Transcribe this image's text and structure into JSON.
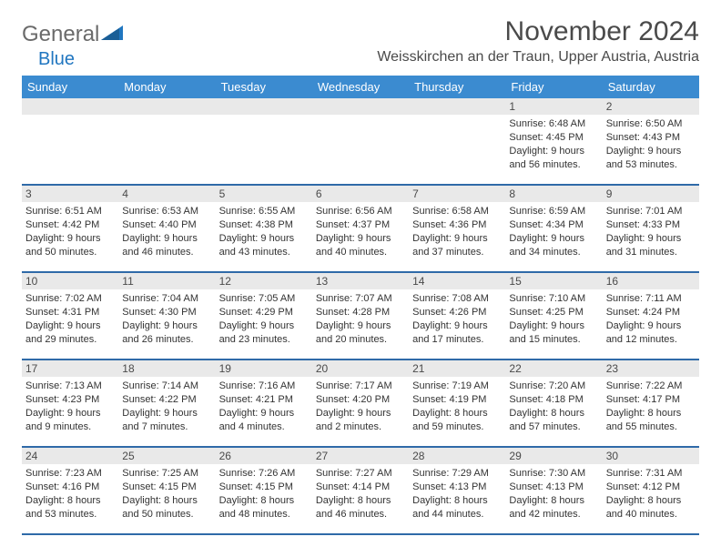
{
  "brand": {
    "part1": "General",
    "part2": "Blue"
  },
  "title": "November 2024",
  "location": "Weisskirchen an der Traun, Upper Austria, Austria",
  "colors": {
    "header_bg": "#3b8bd0",
    "week_border": "#2f6aa8",
    "daynum_bg": "#e9e9e9",
    "text": "#333333",
    "title_text": "#4a4a4a",
    "brand_gray": "#6a6a6a",
    "brand_blue": "#2076c0",
    "page_bg": "#ffffff"
  },
  "daynames": [
    "Sunday",
    "Monday",
    "Tuesday",
    "Wednesday",
    "Thursday",
    "Friday",
    "Saturday"
  ],
  "weeks": [
    {
      "nums": [
        "",
        "",
        "",
        "",
        "",
        "1",
        "2"
      ],
      "cells": [
        null,
        null,
        null,
        null,
        null,
        {
          "sunrise": "Sunrise: 6:48 AM",
          "sunset": "Sunset: 4:45 PM",
          "daylight1": "Daylight: 9 hours",
          "daylight2": "and 56 minutes."
        },
        {
          "sunrise": "Sunrise: 6:50 AM",
          "sunset": "Sunset: 4:43 PM",
          "daylight1": "Daylight: 9 hours",
          "daylight2": "and 53 minutes."
        }
      ]
    },
    {
      "nums": [
        "3",
        "4",
        "5",
        "6",
        "7",
        "8",
        "9"
      ],
      "cells": [
        {
          "sunrise": "Sunrise: 6:51 AM",
          "sunset": "Sunset: 4:42 PM",
          "daylight1": "Daylight: 9 hours",
          "daylight2": "and 50 minutes."
        },
        {
          "sunrise": "Sunrise: 6:53 AM",
          "sunset": "Sunset: 4:40 PM",
          "daylight1": "Daylight: 9 hours",
          "daylight2": "and 46 minutes."
        },
        {
          "sunrise": "Sunrise: 6:55 AM",
          "sunset": "Sunset: 4:38 PM",
          "daylight1": "Daylight: 9 hours",
          "daylight2": "and 43 minutes."
        },
        {
          "sunrise": "Sunrise: 6:56 AM",
          "sunset": "Sunset: 4:37 PM",
          "daylight1": "Daylight: 9 hours",
          "daylight2": "and 40 minutes."
        },
        {
          "sunrise": "Sunrise: 6:58 AM",
          "sunset": "Sunset: 4:36 PM",
          "daylight1": "Daylight: 9 hours",
          "daylight2": "and 37 minutes."
        },
        {
          "sunrise": "Sunrise: 6:59 AM",
          "sunset": "Sunset: 4:34 PM",
          "daylight1": "Daylight: 9 hours",
          "daylight2": "and 34 minutes."
        },
        {
          "sunrise": "Sunrise: 7:01 AM",
          "sunset": "Sunset: 4:33 PM",
          "daylight1": "Daylight: 9 hours",
          "daylight2": "and 31 minutes."
        }
      ]
    },
    {
      "nums": [
        "10",
        "11",
        "12",
        "13",
        "14",
        "15",
        "16"
      ],
      "cells": [
        {
          "sunrise": "Sunrise: 7:02 AM",
          "sunset": "Sunset: 4:31 PM",
          "daylight1": "Daylight: 9 hours",
          "daylight2": "and 29 minutes."
        },
        {
          "sunrise": "Sunrise: 7:04 AM",
          "sunset": "Sunset: 4:30 PM",
          "daylight1": "Daylight: 9 hours",
          "daylight2": "and 26 minutes."
        },
        {
          "sunrise": "Sunrise: 7:05 AM",
          "sunset": "Sunset: 4:29 PM",
          "daylight1": "Daylight: 9 hours",
          "daylight2": "and 23 minutes."
        },
        {
          "sunrise": "Sunrise: 7:07 AM",
          "sunset": "Sunset: 4:28 PM",
          "daylight1": "Daylight: 9 hours",
          "daylight2": "and 20 minutes."
        },
        {
          "sunrise": "Sunrise: 7:08 AM",
          "sunset": "Sunset: 4:26 PM",
          "daylight1": "Daylight: 9 hours",
          "daylight2": "and 17 minutes."
        },
        {
          "sunrise": "Sunrise: 7:10 AM",
          "sunset": "Sunset: 4:25 PM",
          "daylight1": "Daylight: 9 hours",
          "daylight2": "and 15 minutes."
        },
        {
          "sunrise": "Sunrise: 7:11 AM",
          "sunset": "Sunset: 4:24 PM",
          "daylight1": "Daylight: 9 hours",
          "daylight2": "and 12 minutes."
        }
      ]
    },
    {
      "nums": [
        "17",
        "18",
        "19",
        "20",
        "21",
        "22",
        "23"
      ],
      "cells": [
        {
          "sunrise": "Sunrise: 7:13 AM",
          "sunset": "Sunset: 4:23 PM",
          "daylight1": "Daylight: 9 hours",
          "daylight2": "and 9 minutes."
        },
        {
          "sunrise": "Sunrise: 7:14 AM",
          "sunset": "Sunset: 4:22 PM",
          "daylight1": "Daylight: 9 hours",
          "daylight2": "and 7 minutes."
        },
        {
          "sunrise": "Sunrise: 7:16 AM",
          "sunset": "Sunset: 4:21 PM",
          "daylight1": "Daylight: 9 hours",
          "daylight2": "and 4 minutes."
        },
        {
          "sunrise": "Sunrise: 7:17 AM",
          "sunset": "Sunset: 4:20 PM",
          "daylight1": "Daylight: 9 hours",
          "daylight2": "and 2 minutes."
        },
        {
          "sunrise": "Sunrise: 7:19 AM",
          "sunset": "Sunset: 4:19 PM",
          "daylight1": "Daylight: 8 hours",
          "daylight2": "and 59 minutes."
        },
        {
          "sunrise": "Sunrise: 7:20 AM",
          "sunset": "Sunset: 4:18 PM",
          "daylight1": "Daylight: 8 hours",
          "daylight2": "and 57 minutes."
        },
        {
          "sunrise": "Sunrise: 7:22 AM",
          "sunset": "Sunset: 4:17 PM",
          "daylight1": "Daylight: 8 hours",
          "daylight2": "and 55 minutes."
        }
      ]
    },
    {
      "nums": [
        "24",
        "25",
        "26",
        "27",
        "28",
        "29",
        "30"
      ],
      "cells": [
        {
          "sunrise": "Sunrise: 7:23 AM",
          "sunset": "Sunset: 4:16 PM",
          "daylight1": "Daylight: 8 hours",
          "daylight2": "and 53 minutes."
        },
        {
          "sunrise": "Sunrise: 7:25 AM",
          "sunset": "Sunset: 4:15 PM",
          "daylight1": "Daylight: 8 hours",
          "daylight2": "and 50 minutes."
        },
        {
          "sunrise": "Sunrise: 7:26 AM",
          "sunset": "Sunset: 4:15 PM",
          "daylight1": "Daylight: 8 hours",
          "daylight2": "and 48 minutes."
        },
        {
          "sunrise": "Sunrise: 7:27 AM",
          "sunset": "Sunset: 4:14 PM",
          "daylight1": "Daylight: 8 hours",
          "daylight2": "and 46 minutes."
        },
        {
          "sunrise": "Sunrise: 7:29 AM",
          "sunset": "Sunset: 4:13 PM",
          "daylight1": "Daylight: 8 hours",
          "daylight2": "and 44 minutes."
        },
        {
          "sunrise": "Sunrise: 7:30 AM",
          "sunset": "Sunset: 4:13 PM",
          "daylight1": "Daylight: 8 hours",
          "daylight2": "and 42 minutes."
        },
        {
          "sunrise": "Sunrise: 7:31 AM",
          "sunset": "Sunset: 4:12 PM",
          "daylight1": "Daylight: 8 hours",
          "daylight2": "and 40 minutes."
        }
      ]
    }
  ]
}
